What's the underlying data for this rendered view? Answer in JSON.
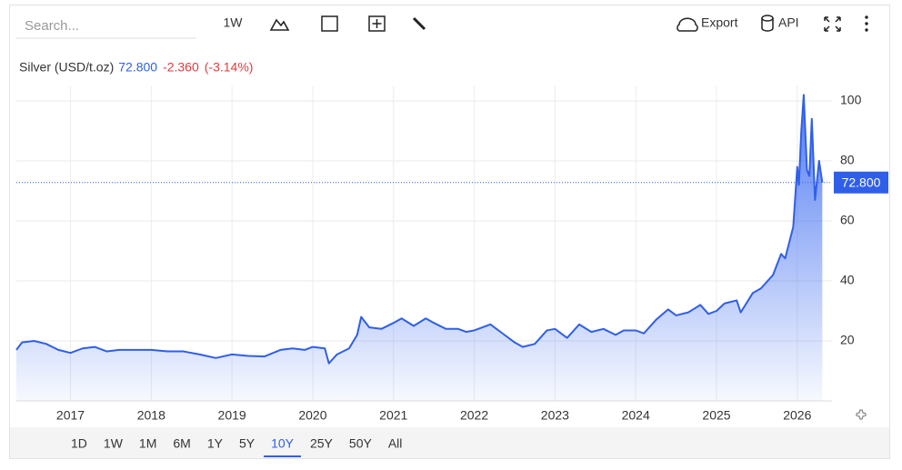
{
  "toolbar": {
    "search_placeholder": "Search...",
    "interval": "1W",
    "export": "Export",
    "api": "API"
  },
  "chart_data": {
    "type": "area",
    "title": "Silver (USD/t.oz)",
    "last_value": {
      "value": 72.8,
      "label": "72.800"
    },
    "change": "-2.360",
    "change_pct": "(-3.14%)",
    "x": [
      2016.33,
      2016.4,
      2016.55,
      2016.7,
      2016.85,
      2017.0,
      2017.15,
      2017.3,
      2017.45,
      2017.6,
      2017.8,
      2018.0,
      2018.2,
      2018.4,
      2018.6,
      2018.8,
      2019.0,
      2019.2,
      2019.4,
      2019.6,
      2019.75,
      2019.9,
      2020.0,
      2020.15,
      2020.2,
      2020.3,
      2020.45,
      2020.55,
      2020.6,
      2020.7,
      2020.85,
      2021.0,
      2021.1,
      2021.25,
      2021.4,
      2021.5,
      2021.65,
      2021.8,
      2021.9,
      2022.0,
      2022.2,
      2022.35,
      2022.5,
      2022.6,
      2022.75,
      2022.9,
      2023.0,
      2023.15,
      2023.3,
      2023.45,
      2023.6,
      2023.75,
      2023.85,
      2024.0,
      2024.1,
      2024.25,
      2024.4,
      2024.5,
      2024.65,
      2024.8,
      2024.9,
      2025.0,
      2025.1,
      2025.25,
      2025.3,
      2025.45,
      2025.55,
      2025.7,
      2025.8,
      2025.85,
      2025.95,
      2026.0,
      2026.02,
      2026.05,
      2026.08,
      2026.12,
      2026.15,
      2026.18,
      2026.22,
      2026.27,
      2026.31
    ],
    "series": [
      {
        "name": "Silver",
        "color": "#2f5fe8",
        "values": [
          17.0,
          19.5,
          20.0,
          19.0,
          17.0,
          16.0,
          17.5,
          18.0,
          16.5,
          17.0,
          17.0,
          17.0,
          16.5,
          16.5,
          15.5,
          14.3,
          15.5,
          15.0,
          14.8,
          17.0,
          17.5,
          17.0,
          18.0,
          17.5,
          12.5,
          15.5,
          17.5,
          22.0,
          28.0,
          24.5,
          24.0,
          26.0,
          27.5,
          25.0,
          27.5,
          26.0,
          24.0,
          24.0,
          23.0,
          23.5,
          25.5,
          22.5,
          19.5,
          18.0,
          19.0,
          23.5,
          24.0,
          21.0,
          25.5,
          23.0,
          24.0,
          22.0,
          23.5,
          23.5,
          22.5,
          27.0,
          30.5,
          28.5,
          29.5,
          32.0,
          29.0,
          30.0,
          32.5,
          33.5,
          29.5,
          36.0,
          37.5,
          42.0,
          49.0,
          47.5,
          58.0,
          78.0,
          72.0,
          90.0,
          102.0,
          77.0,
          75.0,
          94.0,
          67.0,
          80.0,
          72.8
        ]
      }
    ],
    "xlim": [
      2016.33,
      2026.43
    ],
    "xticks": [
      2017,
      2018,
      2019,
      2020,
      2021,
      2022,
      2023,
      2024,
      2025,
      2026
    ],
    "ylim": [
      0,
      105
    ],
    "yticks": [
      20,
      40,
      60,
      80,
      100
    ],
    "grid": true
  },
  "ranges": {
    "items": [
      "1D",
      "1W",
      "1M",
      "6M",
      "1Y",
      "5Y",
      "10Y",
      "25Y",
      "50Y",
      "All"
    ],
    "active": 6
  }
}
